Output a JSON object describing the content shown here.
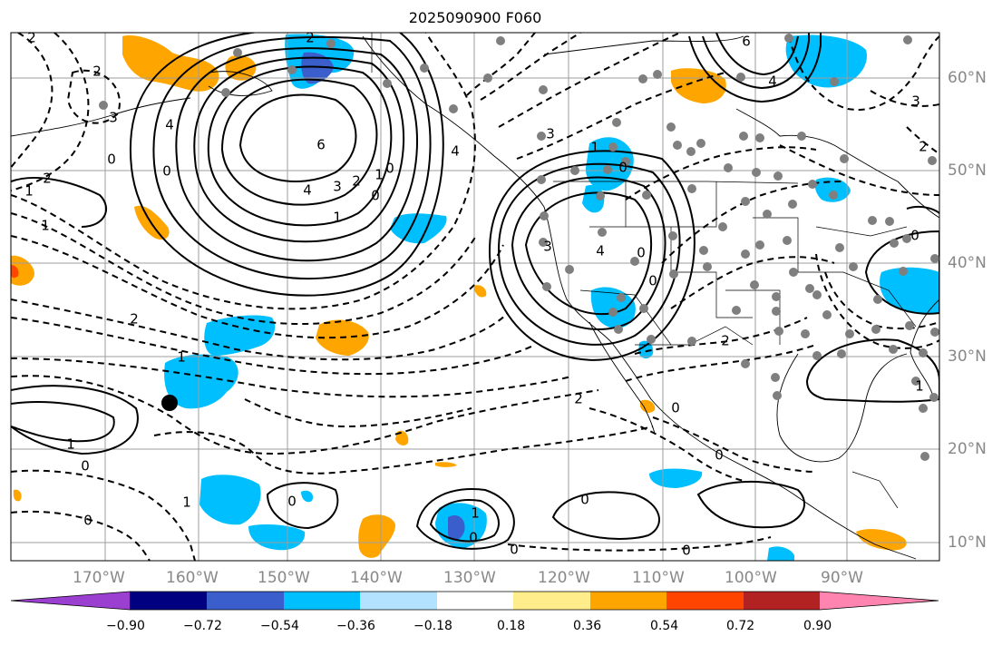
{
  "figure": {
    "title": "2025090900 F060"
  },
  "map": {
    "lon_labels": [
      "170°W",
      "160°W",
      "150°W",
      "140°W",
      "130°W",
      "120°W",
      "110°W",
      "100°W",
      "90°W"
    ],
    "lat_labels": [
      "60°N",
      "50°N",
      "40°N",
      "30°N",
      "20°N",
      "10°N"
    ],
    "contour_labels": [
      "2",
      "2",
      "2",
      "3",
      "4",
      "0",
      "1",
      "2",
      "1",
      "0",
      "6",
      "4",
      "3",
      "2",
      "1",
      "0",
      "0",
      "1",
      "4",
      "3",
      "2",
      "4",
      "0",
      "3",
      "0",
      "1",
      "2",
      "1",
      "1",
      "0",
      "0",
      "1",
      "1",
      "2",
      "0",
      "0",
      "0",
      "0",
      "0",
      "6",
      "4",
      "3",
      "0",
      "0",
      "2",
      "0",
      "1",
      "0"
    ]
  },
  "colorbar": {
    "ticks": [
      "−0.90",
      "−0.72",
      "−0.54",
      "−0.36",
      "−0.18",
      "0.18",
      "0.36",
      "0.54",
      "0.72",
      "0.90"
    ],
    "colors": [
      "#9b3fd0",
      "#000080",
      "#3a5fcd",
      "#00bfff",
      "#b2e2ff",
      "#ffffff",
      "#ffec8b",
      "#ffa500",
      "#ff4500",
      "#b22222",
      "#ff85b0"
    ]
  },
  "colors": {
    "contour": "#000000",
    "grid": "#9e9e9e",
    "station_dot": "#7f7f7f",
    "marker": "#000000"
  }
}
